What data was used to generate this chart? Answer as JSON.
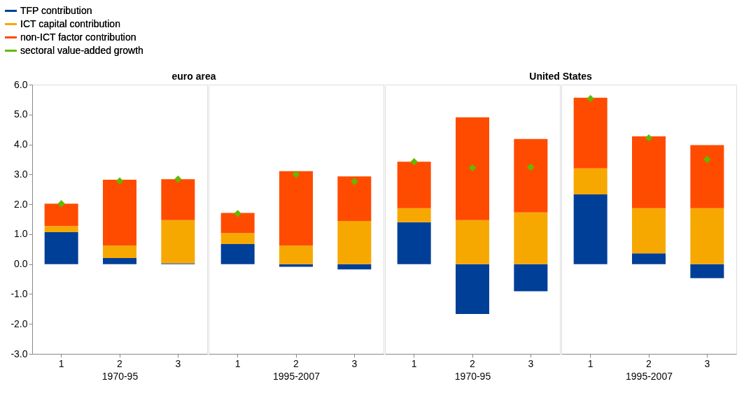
{
  "chart_data": [
    {
      "type": "bar",
      "stacked": true,
      "title": "euro area",
      "xlabel": "1970-95",
      "categories": [
        "1",
        "2",
        "3"
      ],
      "ylim": [
        -3,
        6
      ],
      "yticks": [
        {
          "value": -3,
          "label": "-3.0"
        },
        {
          "value": -2,
          "label": "-2.0"
        },
        {
          "value": -1,
          "label": "-1.0"
        },
        {
          "value": 0,
          "label": "0.0"
        },
        {
          "value": 1,
          "label": "1.0"
        },
        {
          "value": 2,
          "label": "2.0"
        },
        {
          "value": 3,
          "label": "3.0"
        },
        {
          "value": 4,
          "label": "4.0"
        },
        {
          "value": 5,
          "label": "5.0"
        },
        {
          "value": 6,
          "label": "6.0"
        }
      ],
      "grid": false,
      "legend": "top left",
      "series": [
        {
          "name": "TFP contribution",
          "color": "#003f97",
          "values": [
            1.07,
            0.2,
            0.03
          ]
        },
        {
          "name": "ICT capital contribution",
          "color": "#f7a800",
          "values": [
            0.2,
            0.42,
            1.44
          ]
        },
        {
          "name": "non-ICT factor contribution",
          "color": "#ff4b00",
          "values": [
            0.75,
            2.2,
            1.37
          ]
        },
        {
          "name": "sectoral value-added growth",
          "color": "#65b800",
          "type": "scatter",
          "marker": "diamond",
          "values": [
            2.02,
            2.78,
            2.84
          ]
        }
      ]
    },
    {
      "type": "bar",
      "stacked": true,
      "xlabel": "1995-2007",
      "categories": [
        "1",
        "2",
        "3"
      ],
      "ylim": [
        -3,
        6
      ],
      "tick_labels": "x",
      "grid": false,
      "series": [
        {
          "color": "#003f97",
          "values": [
            0.67,
            -0.09,
            -0.18
          ]
        },
        {
          "color": "#f7a800",
          "values": [
            0.37,
            0.62,
            1.44
          ]
        },
        {
          "color": "#ff4b00",
          "values": [
            0.67,
            2.49,
            1.49
          ]
        },
        {
          "color": "#65b800",
          "type": "scatter",
          "marker": "diamond",
          "values": [
            1.69,
            3.0,
            2.76
          ]
        }
      ]
    },
    {
      "type": "bar",
      "stacked": true,
      "title": "United States",
      "xlabel": "1970-95",
      "categories": [
        "1",
        "2",
        "3"
      ],
      "ylim": [
        -3,
        6
      ],
      "tick_labels": "x",
      "grid": false,
      "series": [
        {
          "color": "#003f97",
          "values": [
            1.4,
            -1.67,
            -0.91
          ]
        },
        {
          "color": "#f7a800",
          "values": [
            0.47,
            1.47,
            1.73
          ]
        },
        {
          "color": "#ff4b00",
          "values": [
            1.55,
            3.44,
            2.45
          ]
        },
        {
          "color": "#65b800",
          "type": "scatter",
          "marker": "diamond",
          "values": [
            3.42,
            3.22,
            3.24
          ]
        }
      ]
    },
    {
      "type": "bar",
      "stacked": true,
      "xlabel": "1995-2007",
      "categories": [
        "1",
        "2",
        "3"
      ],
      "ylim": [
        -3,
        6
      ],
      "tick_labels": "x",
      "grid": false,
      "series": [
        {
          "color": "#003f97",
          "values": [
            2.33,
            0.36,
            -0.47
          ]
        },
        {
          "color": "#f7a800",
          "values": [
            0.87,
            1.51,
            1.87
          ]
        },
        {
          "color": "#ff4b00",
          "values": [
            2.36,
            2.4,
            2.11
          ]
        },
        {
          "color": "#65b800",
          "type": "scatter",
          "marker": "diamond",
          "values": [
            5.53,
            4.22,
            3.5
          ]
        }
      ]
    }
  ]
}
